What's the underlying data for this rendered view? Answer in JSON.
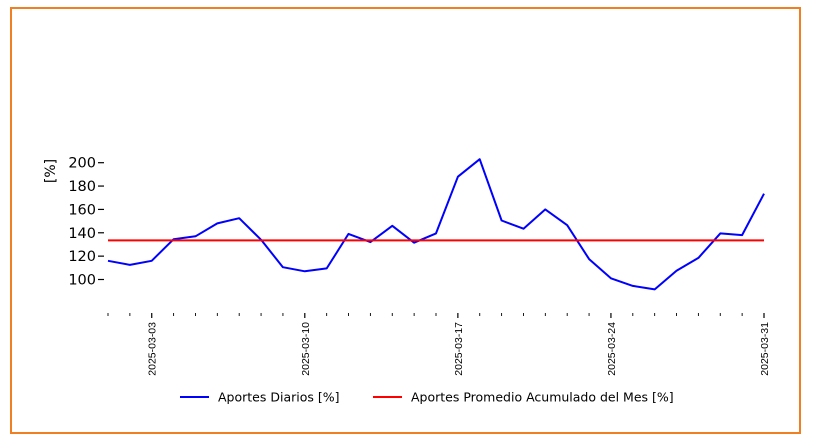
{
  "chart_data": {
    "type": "line",
    "title": "",
    "xlabel": "",
    "ylabel": "[%]",
    "ylim": [
      85,
      210
    ],
    "yticks": [
      "100",
      "120",
      "140",
      "160",
      "180",
      "200"
    ],
    "ytick_values": [
      100,
      120,
      140,
      160,
      180,
      200
    ],
    "xtick_labels": [
      "2025-03-03",
      "2025-03-10",
      "2025-03-17",
      "2025-03-24",
      "2025-03-31"
    ],
    "xtick_days": [
      3,
      10,
      17,
      24,
      31
    ],
    "x": [
      1,
      2,
      3,
      4,
      5,
      6,
      7,
      8,
      9,
      10,
      11,
      12,
      13,
      14,
      15,
      16,
      17,
      18,
      19,
      20,
      21,
      22,
      23,
      24,
      25,
      26,
      27,
      28,
      29,
      30,
      31
    ],
    "series": [
      {
        "name": "Aportes Diarios [%]",
        "color": "#0000ff",
        "values": [
          116,
          112.5,
          116,
          134.5,
          137,
          148,
          152.5,
          134,
          110.5,
          107,
          109.5,
          139,
          132,
          146,
          131.5,
          139.5,
          188,
          203,
          150.5,
          143.5,
          160,
          146.5,
          117.5,
          101,
          94.5,
          91.5,
          107.5,
          118.5,
          139.5,
          138,
          173.5
        ]
      },
      {
        "name": "Aportes Promedio Acumulado del Mes [%]",
        "color": "#ff0000",
        "values": [
          133.5,
          133.5,
          133.5,
          133.5,
          133.5,
          133.5,
          133.5,
          133.5,
          133.5,
          133.5,
          133.5,
          133.5,
          133.5,
          133.5,
          133.5,
          133.5,
          133.5,
          133.5,
          133.5,
          133.5,
          133.5,
          133.5,
          133.5,
          133.5,
          133.5,
          133.5,
          133.5,
          133.5,
          133.5,
          133.5,
          133.5
        ]
      }
    ],
    "grid": false,
    "legend_position": "bottom-center"
  },
  "colors": {
    "frame": "#f07f23"
  }
}
